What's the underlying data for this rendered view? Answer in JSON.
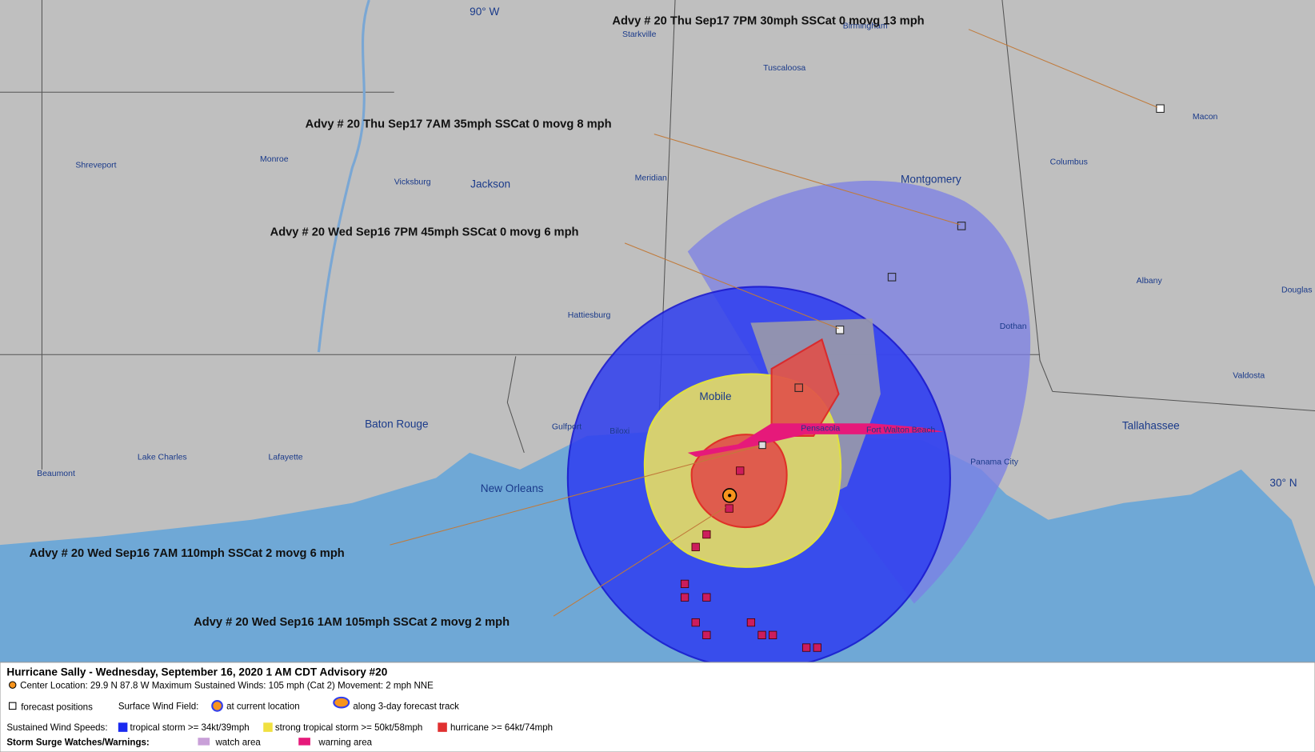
{
  "map": {
    "lon_label": "90° W",
    "lat_label": "30° N",
    "cities": [
      "Starkville",
      "Birmingham",
      "Tuscaloosa",
      "Macon",
      "Shreveport",
      "Monroe",
      "Vicksburg",
      "Jackson",
      "Meridian",
      "Columbus",
      "Montgomery",
      "Hattiesburg",
      "Albany",
      "Douglas",
      "Dothan",
      "Valdosta",
      "Mobile",
      "Tallahassee",
      "Baton Rouge",
      "Gulfport",
      "Biloxi",
      "Pensacola",
      "Fort Walton Beach",
      "Lake Charles",
      "Lafayette",
      "Panama City",
      "Beaumont",
      "New Orleans"
    ]
  },
  "advisories": [
    "Advy # 20 Thu Sep17 7PM  30mph SSCat 0 movg 13 mph",
    "Advy # 20 Thu Sep17 7AM  35mph SSCat 0 movg 8 mph",
    "Advy # 20 Wed Sep16 7PM  45mph SSCat 0 movg 6 mph",
    "Advy # 20 Wed Sep16 7AM  110mph SSCat 2 movg 6 mph",
    "Advy # 20 Wed Sep16 1AM  105mph SSCat 2 movg 2 mph"
  ],
  "legend": {
    "title": "Hurricane Sally  -  Wednesday, September 16, 2020  1 AM CDT   Advisory #20",
    "center": "Center Location: 29.9 N  87.8 W  Maximum Sustained Winds: 105 mph (Cat 2) Movement: 2 mph NNE",
    "forecast_positions": "forecast positions",
    "surface_wind_field": "Surface Wind Field:",
    "at_current": "at current location",
    "along_track": "along 3-day forecast track",
    "sustained": "Sustained Wind Speeds:",
    "ts": "tropical storm >= 34kt/39mph",
    "sts": "strong tropical storm >= 50kt/58mph",
    "hurricane": "hurricane >= 64kt/74mph",
    "surge": "Storm Surge Watches/Warnings:",
    "watch": "watch area",
    "warning": "warning area"
  }
}
